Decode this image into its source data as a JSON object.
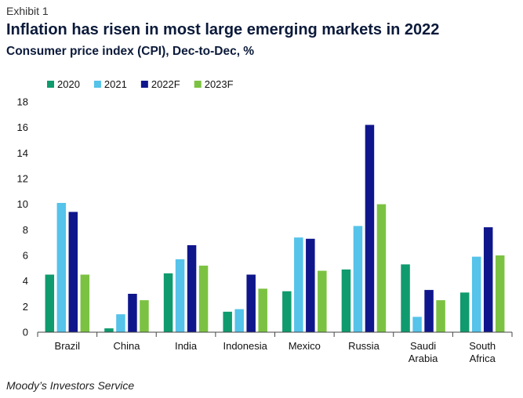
{
  "exhibit": "Exhibit 1",
  "title": "Inflation has risen in most large emerging markets in 2022",
  "subtitle": "Consumer price index (CPI), Dec-to-Dec, %",
  "source": "Moody’s Investors Service",
  "chart_data": {
    "type": "bar",
    "categories": [
      [
        "Brazil"
      ],
      [
        "China"
      ],
      [
        "India"
      ],
      [
        "Indonesia"
      ],
      [
        "Mexico"
      ],
      [
        "Russia"
      ],
      [
        "Saudi",
        "Arabia"
      ],
      [
        "South",
        "Africa"
      ]
    ],
    "series": [
      {
        "name": "2020",
        "color": "#0f9b6e",
        "values": [
          4.5,
          0.3,
          4.6,
          1.6,
          3.2,
          4.9,
          5.3,
          3.1
        ]
      },
      {
        "name": "2021",
        "color": "#55c3ea",
        "values": [
          10.1,
          1.4,
          5.7,
          1.8,
          7.4,
          8.3,
          1.2,
          5.9
        ]
      },
      {
        "name": "2022F",
        "color": "#0f168c",
        "values": [
          9.4,
          3.0,
          6.8,
          4.5,
          7.3,
          16.2,
          3.3,
          8.2
        ]
      },
      {
        "name": "2023F",
        "color": "#7cc242",
        "values": [
          4.5,
          2.5,
          5.2,
          3.4,
          4.8,
          10.0,
          2.5,
          6.0
        ]
      }
    ],
    "ylim": [
      0,
      18
    ],
    "yticks": [
      0,
      2,
      4,
      6,
      8,
      10,
      12,
      14,
      16,
      18
    ],
    "legend_position": "top-left",
    "grid": false
  }
}
